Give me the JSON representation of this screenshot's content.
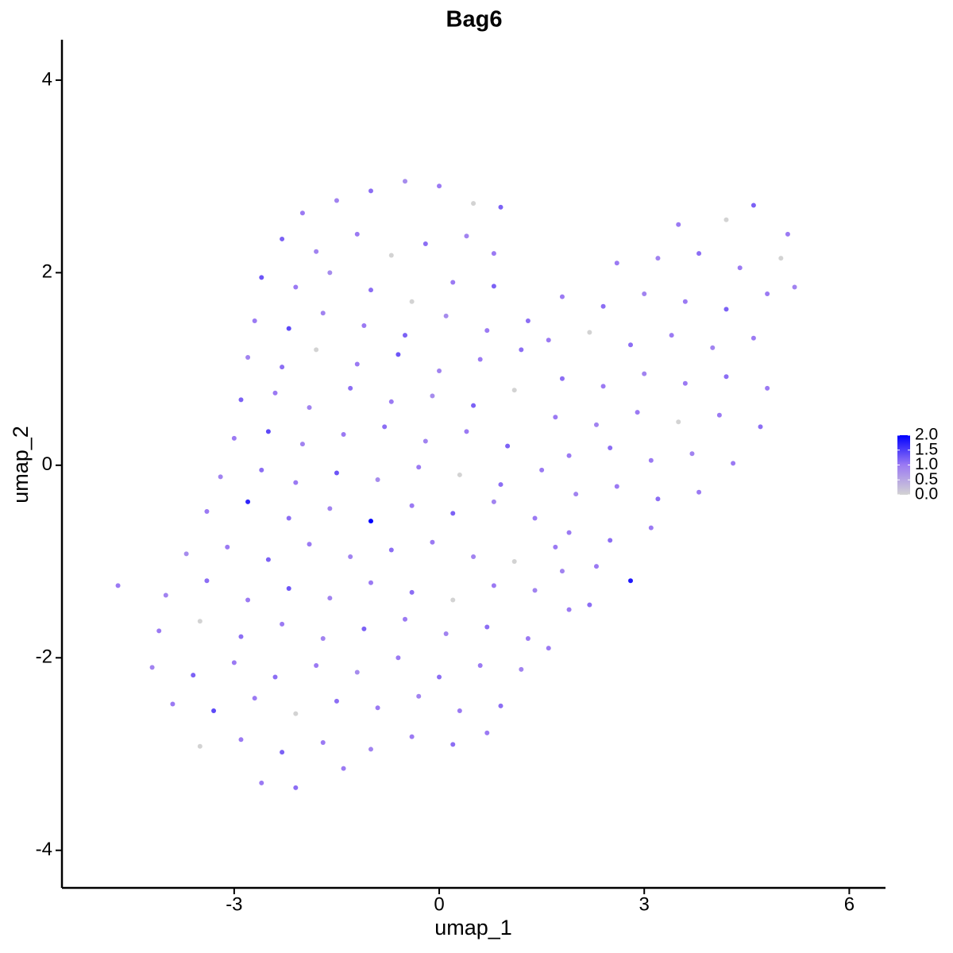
{
  "chart_data": {
    "type": "scatter",
    "title": "Bag6",
    "xlabel": "umap_1",
    "ylabel": "umap_2",
    "x": [
      -2.0,
      -1.5,
      -1.0,
      -0.5,
      0.0,
      0.5,
      0.9,
      -2.3,
      -1.8,
      -1.2,
      -0.7,
      -0.2,
      0.4,
      0.8,
      -2.6,
      -2.1,
      -1.6,
      -1.0,
      -0.4,
      0.2,
      0.8,
      -2.7,
      -2.2,
      -1.7,
      -1.1,
      -0.5,
      0.1,
      0.7,
      1.3,
      -2.8,
      -2.3,
      -1.8,
      -1.2,
      -0.6,
      0.0,
      0.6,
      1.2,
      -2.9,
      -2.4,
      -1.9,
      -1.3,
      -0.7,
      -0.1,
      0.5,
      1.1,
      -3.0,
      -2.5,
      -2.0,
      -1.4,
      -0.8,
      -0.2,
      0.4,
      1.0,
      -3.2,
      -2.6,
      -2.1,
      -1.5,
      -0.9,
      -0.3,
      0.3,
      0.9,
      1.5,
      -3.4,
      -2.8,
      -2.2,
      -1.6,
      -1.0,
      -0.4,
      0.2,
      0.8,
      1.4,
      -3.7,
      -3.1,
      -2.5,
      -1.9,
      -1.3,
      -0.7,
      -0.1,
      0.5,
      1.1,
      1.7,
      -4.7,
      -4.0,
      -3.4,
      -2.8,
      -2.2,
      -1.6,
      -1.0,
      -0.4,
      0.2,
      0.8,
      1.4,
      -4.1,
      -3.5,
      -2.9,
      -2.3,
      -1.7,
      -1.1,
      -0.5,
      0.1,
      0.7,
      1.3,
      -4.2,
      -3.6,
      -3.0,
      -2.4,
      -1.8,
      -1.2,
      -0.6,
      0.0,
      0.6,
      1.2,
      -3.9,
      -3.3,
      -2.7,
      -2.1,
      -1.5,
      -0.9,
      -0.3,
      0.3,
      0.9,
      -3.5,
      -2.9,
      -2.3,
      -1.7,
      -1.0,
      -0.4,
      0.2,
      0.7,
      -2.6,
      -2.1,
      -1.4,
      3.5,
      4.2,
      4.6,
      5.1,
      2.6,
      3.2,
      3.8,
      4.4,
      5.0,
      1.8,
      2.4,
      3.0,
      3.6,
      4.2,
      4.8,
      5.2,
      1.6,
      2.2,
      2.8,
      3.4,
      4.0,
      4.6,
      1.8,
      2.4,
      3.0,
      3.6,
      4.2,
      4.8,
      1.7,
      2.3,
      2.9,
      3.5,
      4.1,
      4.7,
      1.9,
      2.5,
      3.1,
      3.7,
      4.3,
      2.0,
      2.6,
      3.2,
      3.8,
      1.9,
      2.5,
      3.1,
      1.8,
      2.3,
      2.8,
      1.9,
      2.2,
      1.6
    ],
    "y": [
      2.62,
      2.75,
      2.85,
      2.95,
      2.9,
      2.72,
      2.68,
      2.35,
      2.22,
      2.4,
      2.18,
      2.3,
      2.38,
      2.2,
      1.95,
      1.85,
      2.0,
      1.82,
      1.7,
      1.9,
      1.86,
      1.5,
      1.42,
      1.58,
      1.45,
      1.35,
      1.55,
      1.4,
      1.5,
      1.12,
      1.02,
      1.2,
      1.05,
      1.15,
      0.98,
      1.1,
      1.2,
      0.68,
      0.75,
      0.6,
      0.8,
      0.66,
      0.72,
      0.62,
      0.78,
      0.28,
      0.35,
      0.22,
      0.32,
      0.4,
      0.25,
      0.35,
      0.2,
      -0.12,
      -0.05,
      -0.18,
      -0.08,
      -0.15,
      -0.02,
      -0.1,
      -0.2,
      -0.05,
      -0.48,
      -0.38,
      -0.55,
      -0.45,
      -0.58,
      -0.42,
      -0.5,
      -0.38,
      -0.55,
      -0.92,
      -0.85,
      -0.98,
      -0.82,
      -0.95,
      -0.88,
      -0.8,
      -0.95,
      -1.0,
      -0.85,
      -1.25,
      -1.35,
      -1.2,
      -1.4,
      -1.28,
      -1.38,
      -1.22,
      -1.32,
      -1.4,
      -1.25,
      -1.3,
      -1.72,
      -1.62,
      -1.78,
      -1.65,
      -1.8,
      -1.7,
      -1.6,
      -1.75,
      -1.68,
      -1.8,
      -2.1,
      -2.18,
      -2.05,
      -2.2,
      -2.08,
      -2.15,
      -2.0,
      -2.2,
      -2.08,
      -2.12,
      -2.48,
      -2.55,
      -2.42,
      -2.58,
      -2.45,
      -2.52,
      -2.4,
      -2.55,
      -2.5,
      -2.92,
      -2.85,
      -2.98,
      -2.88,
      -2.95,
      -2.82,
      -2.9,
      -2.78,
      -3.3,
      -3.35,
      -3.15,
      2.5,
      2.55,
      2.7,
      2.4,
      2.1,
      2.15,
      2.2,
      2.05,
      2.15,
      1.75,
      1.65,
      1.78,
      1.7,
      1.62,
      1.78,
      1.85,
      1.3,
      1.38,
      1.25,
      1.35,
      1.22,
      1.32,
      0.9,
      0.82,
      0.95,
      0.85,
      0.92,
      0.8,
      0.5,
      0.42,
      0.55,
      0.45,
      0.52,
      0.4,
      0.1,
      0.18,
      0.05,
      0.12,
      0.02,
      -0.3,
      -0.22,
      -0.35,
      -0.28,
      -0.7,
      -0.78,
      -0.65,
      -1.1,
      -1.05,
      -1.2,
      -1.5,
      -1.45,
      -1.9
    ],
    "values": [
      1.0,
      0.9,
      1.1,
      0.8,
      1.0,
      0,
      1.2,
      1.2,
      0.9,
      1.0,
      0,
      1.1,
      0.9,
      1.0,
      1.3,
      1.0,
      0.8,
      1.1,
      0,
      1.0,
      1.2,
      1.0,
      1.4,
      0.9,
      1.0,
      1.2,
      0.8,
      1.0,
      1.1,
      0.9,
      1.1,
      0,
      1.0,
      1.3,
      0.9,
      1.0,
      1.1,
      1.2,
      1.0,
      0.9,
      1.1,
      1.0,
      0.8,
      1.2,
      0,
      1.0,
      1.4,
      0.9,
      1.0,
      1.1,
      0.9,
      1.0,
      1.2,
      0.9,
      1.1,
      1.0,
      1.3,
      0.8,
      1.0,
      0,
      1.1,
      1.0,
      1.0,
      1.7,
      1.1,
      0.9,
      2.0,
      1.0,
      1.2,
      0.9,
      1.0,
      0.8,
      1.0,
      1.2,
      1.0,
      0.9,
      1.1,
      1.0,
      0.9,
      0,
      1.0,
      1.0,
      0.9,
      1.1,
      1.0,
      1.3,
      0.9,
      1.0,
      1.1,
      0,
      1.0,
      0.9,
      1.0,
      0,
      1.1,
      1.0,
      0.9,
      1.2,
      1.0,
      0.9,
      1.1,
      1.0,
      0.9,
      1.2,
      1.0,
      1.1,
      1.0,
      0.8,
      1.0,
      1.1,
      1.0,
      0.9,
      1.0,
      1.4,
      1.0,
      0,
      1.1,
      1.0,
      0.9,
      1.0,
      1.1,
      0,
      1.0,
      1.2,
      1.0,
      0.9,
      1.0,
      1.1,
      1.0,
      1.0,
      1.1,
      1.0,
      1.0,
      0,
      1.2,
      1.0,
      1.0,
      0.9,
      1.1,
      1.0,
      0,
      1.0,
      1.1,
      0.9,
      1.0,
      1.2,
      1.0,
      0.9,
      1.0,
      0,
      1.1,
      1.0,
      0.9,
      1.0,
      1.1,
      1.0,
      0.9,
      1.0,
      1.1,
      1.0,
      1.0,
      0.9,
      1.0,
      0,
      1.0,
      1.1,
      1.0,
      1.1,
      1.0,
      0.9,
      1.0,
      0.9,
      1.0,
      1.1,
      1.0,
      1.0,
      1.1,
      1.0,
      0.9,
      1.0,
      1.8,
      1.0,
      1.1,
      1.0
    ],
    "xlim": [
      -5.52,
      6.53
    ],
    "ylim": [
      -4.39,
      4.42
    ],
    "xticks": [
      -3,
      0,
      3,
      6
    ],
    "yticks": [
      -4,
      -2,
      0,
      2,
      4
    ],
    "colorbar": {
      "lim": [
        0,
        2.0
      ],
      "colors": [
        "#d3d3d3",
        "#9b7af3",
        "#0000ff"
      ],
      "ticks": [
        {
          "value": 0,
          "label": "0.0"
        },
        {
          "value": 0.5,
          "label": "0.5"
        },
        {
          "value": 1,
          "label": "1.0"
        },
        {
          "value": 1.5,
          "label": "1.5"
        },
        {
          "value": 2,
          "label": "2.0"
        }
      ]
    }
  }
}
